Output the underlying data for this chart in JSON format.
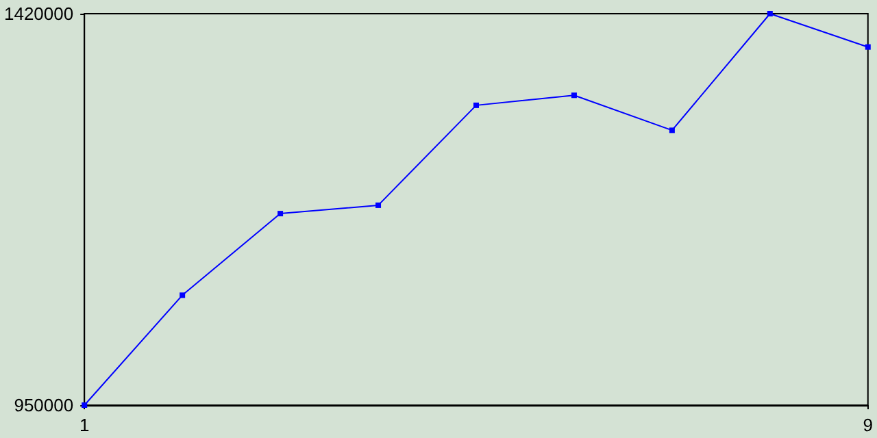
{
  "chart_data": {
    "type": "line",
    "x": [
      1,
      2,
      3,
      4,
      5,
      6,
      7,
      8,
      9
    ],
    "series": [
      {
        "color": "#0000ff",
        "values": [
          950000,
          1082000,
          1180000,
          1190000,
          1310000,
          1322000,
          1280000,
          1420000,
          1380000
        ]
      }
    ],
    "xlim": [
      1,
      9
    ],
    "xticks": [
      1,
      9
    ],
    "ylim": [
      950000,
      1420000
    ],
    "yticks": [
      950000,
      1420000
    ],
    "grid": false,
    "marker": "square",
    "line_style": "solid"
  }
}
